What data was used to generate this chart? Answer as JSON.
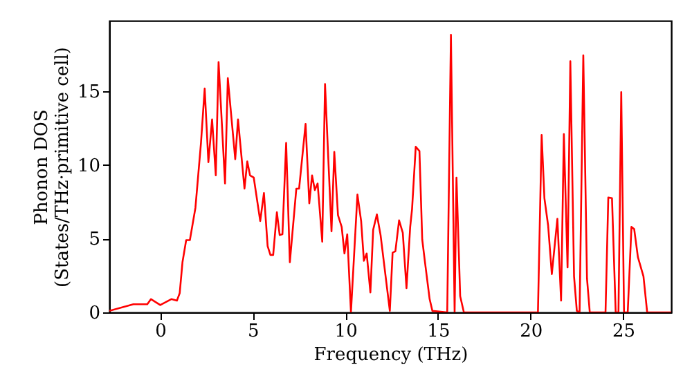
{
  "chart_data": {
    "type": "line",
    "xlabel": "Frequency (THz)",
    "ylabel": "Phonon DOS\n(States/THz·primitive cell)",
    "x": [
      -2.75,
      -1.45,
      -0.7,
      -0.5,
      0,
      0.6,
      0.9,
      1.05,
      1.2,
      1.4,
      1.6,
      1.9,
      2.2,
      2.4,
      2.6,
      2.8,
      3.0,
      3.15,
      3.5,
      3.65,
      4.05,
      4.2,
      4.55,
      4.7,
      4.85,
      5.05,
      5.4,
      5.6,
      5.8,
      5.95,
      6.1,
      6.3,
      6.45,
      6.6,
      6.8,
      7.0,
      7.35,
      7.5,
      7.85,
      8.05,
      8.2,
      8.35,
      8.5,
      8.75,
      8.9,
      9.25,
      9.4,
      9.6,
      9.8,
      9.95,
      10.1,
      10.3,
      10.65,
      10.85,
      11.0,
      11.15,
      11.35,
      11.5,
      11.7,
      11.9,
      12.4,
      12.55,
      12.7,
      12.9,
      13.1,
      13.3,
      13.5,
      13.6,
      13.8,
      14.0,
      14.15,
      14.3,
      14.55,
      14.7,
      15.5,
      15.7,
      15.9,
      16.0,
      16.2,
      16.4,
      20.4,
      20.6,
      20.75,
      20.95,
      21.15,
      21.45,
      21.65,
      21.8,
      22.0,
      22.15,
      22.35,
      22.5,
      22.65,
      22.85,
      23.05,
      23.2,
      24.05,
      24.2,
      24.4,
      24.6,
      24.75,
      24.9,
      25.05,
      25.25,
      25.45,
      25.6,
      25.8,
      26.1,
      26.3,
      27.6
    ],
    "series": [
      {
        "color": "#ff0000",
        "values": [
          0.1,
          0.55,
          0.55,
          0.9,
          0.5,
          0.9,
          0.8,
          1.3,
          3.4,
          4.9,
          4.9,
          7.1,
          11.5,
          15.2,
          10.2,
          13.1,
          9.3,
          17.0,
          8.75,
          15.9,
          10.4,
          13.1,
          8.4,
          10.25,
          9.3,
          9.15,
          6.2,
          8.1,
          4.5,
          3.9,
          3.9,
          6.8,
          5.25,
          5.3,
          11.5,
          3.4,
          8.4,
          8.4,
          12.8,
          7.4,
          9.3,
          8.3,
          8.75,
          4.8,
          15.5,
          5.5,
          10.9,
          6.6,
          5.8,
          4.0,
          5.3,
          0,
          8.0,
          6.2,
          3.5,
          4.0,
          1.35,
          5.6,
          6.65,
          5.25,
          0.1,
          4.05,
          4.15,
          6.25,
          5.4,
          1.65,
          5.8,
          7.0,
          11.25,
          10.95,
          4.95,
          3.4,
          0.9,
          0.1,
          0,
          18.85,
          0,
          9.15,
          1.1,
          0,
          0,
          12.05,
          7.75,
          5.9,
          2.6,
          6.35,
          0.8,
          12.1,
          3.05,
          17.05,
          2.45,
          0.1,
          0,
          17.45,
          2.3,
          0,
          0,
          7.8,
          7.75,
          0,
          0,
          14.95,
          0,
          0,
          5.8,
          5.65,
          3.75,
          2.45,
          0,
          0
        ]
      }
    ],
    "xlim": [
      -2.75,
      27.6
    ],
    "ylim": [
      0,
      19.8
    ],
    "xticks": [
      0,
      5,
      10,
      15,
      20,
      25
    ],
    "yticks": [
      0,
      5,
      10,
      15
    ],
    "grid": false,
    "legend": false,
    "marker": "none",
    "line_style": "solid"
  }
}
